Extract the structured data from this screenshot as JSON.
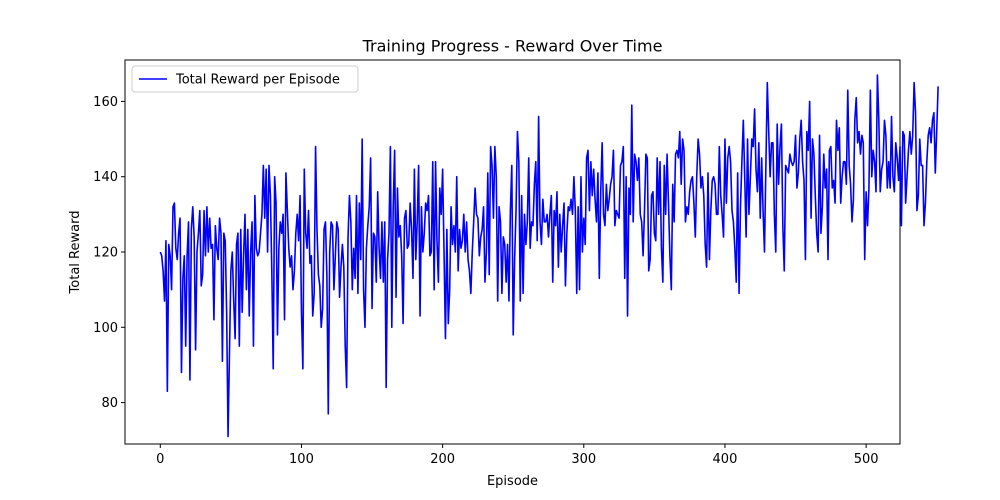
{
  "chart_data": {
    "type": "line",
    "title": "Training Progress - Reward Over Time",
    "xlabel": "Episode",
    "ylabel": "Total Reward",
    "xlim": [
      -25,
      524
    ],
    "ylim": [
      69,
      171
    ],
    "xticks": [
      0,
      100,
      200,
      300,
      400,
      500
    ],
    "yticks": [
      80,
      100,
      120,
      140,
      160
    ],
    "grid": false,
    "legend_position": "top-left",
    "series": [
      {
        "name": "Total Reward per Episode",
        "color": "#0000ff",
        "x_start": 0,
        "x_step": 1,
        "values": [
          120,
          119,
          115,
          107,
          123,
          83,
          122,
          119,
          110,
          132,
          133,
          121,
          118,
          125,
          129,
          88,
          113,
          119,
          95,
          119,
          128,
          86,
          126,
          132,
          124,
          94,
          120,
          125,
          131,
          111,
          114,
          131,
          119,
          132,
          120,
          129,
          121,
          122,
          102,
          127,
          121,
          118,
          129,
          125,
          91,
          125,
          123,
          104,
          71,
          93,
          115,
          120,
          107,
          97,
          122,
          125,
          95,
          126,
          104,
          119,
          130,
          110,
          126,
          103,
          120,
          128,
          95,
          135,
          121,
          119,
          120,
          125,
          130,
          143,
          129,
          142,
          120,
          143,
          135,
          115,
          89,
          140,
          133,
          98,
          121,
          128,
          125,
          130,
          102,
          141,
          131,
          121,
          116,
          119,
          110,
          115,
          125,
          130,
          123,
          135,
          104,
          89,
          142,
          125,
          121,
          131,
          117,
          119,
          103,
          109,
          148,
          126,
          114,
          111,
          100,
          105,
          126,
          128,
          114,
          77,
          120,
          128,
          127,
          110,
          119,
          128,
          126,
          108,
          116,
          122,
          116,
          95,
          84,
          124,
          135,
          128,
          110,
          121,
          113,
          135,
          109,
          133,
          118,
          150,
          110,
          100,
          121,
          127,
          132,
          145,
          105,
          125,
          124,
          112,
          136,
          121,
          113,
          128,
          112,
          128,
          84,
          118,
          125,
          148,
          100,
          132,
          147,
          108,
          137,
          124,
          127,
          119,
          101,
          129,
          131,
          121,
          122,
          133,
          126,
          113,
          142,
          118,
          128,
          143,
          103,
          132,
          120,
          125,
          133,
          131,
          135,
          119,
          120,
          144,
          110,
          144,
          123,
          112,
          137,
          130,
          142,
          120,
          97,
          126,
          101,
          110,
          132,
          122,
          127,
          120,
          140,
          115,
          126,
          121,
          123,
          130,
          120,
          128,
          118,
          115,
          109,
          120,
          128,
          137,
          130,
          129,
          119,
          124,
          126,
          132,
          112,
          120,
          141,
          114,
          148,
          143,
          129,
          148,
          140,
          107,
          132,
          128,
          109,
          124,
          122,
          112,
          122,
          107,
          131,
          143,
          98,
          118,
          131,
          152,
          144,
          107,
          135,
          109,
          130,
          122,
          128,
          145,
          121,
          128,
          127,
          138,
          144,
          123,
          156,
          128,
          122,
          134,
          128,
          128,
          130,
          124,
          130,
          135,
          112,
          131,
          127,
          136,
          116,
          130,
          120,
          127,
          133,
          111,
          125,
          132,
          131,
          134,
          130,
          140,
          131,
          109,
          132,
          110,
          140,
          120,
          129,
          122,
          145,
          147,
          131,
          144,
          135,
          142,
          134,
          128,
          141,
          113,
          136,
          149,
          130,
          127,
          138,
          131,
          134,
          138,
          140,
          147,
          127,
          131,
          130,
          129,
          143,
          144,
          148,
          113,
          140,
          103,
          137,
          130,
          159,
          128,
          146,
          144,
          139,
          145,
          130,
          128,
          119,
          131,
          146,
          145,
          115,
          118,
          135,
          136,
          125,
          123,
          145,
          130,
          144,
          121,
          112,
          143,
          130,
          146,
          133,
          119,
          110,
          138,
          128,
          146,
          147,
          145,
          152,
          138,
          150,
          147,
          128,
          132,
          130,
          136,
          139,
          140,
          133,
          124,
          140,
          150,
          146,
          137,
          140,
          135,
          122,
          116,
          141,
          118,
          131,
          139,
          140,
          138,
          130,
          130,
          148,
          135,
          130,
          124,
          150,
          133,
          145,
          148,
          144,
          131,
          128,
          121,
          112,
          141,
          109,
          132,
          144,
          155,
          140,
          124,
          150,
          130,
          140,
          150,
          148,
          158,
          142,
          136,
          149,
          129,
          145,
          131,
          120,
          143,
          165,
          152,
          140,
          149,
          149,
          130,
          120,
          154,
          138,
          148,
          154,
          127,
          115,
          143,
          142,
          141,
          146,
          144,
          143,
          144,
          151,
          137,
          141,
          150,
          155,
          144,
          139,
          118,
          152,
          147,
          160,
          129,
          150,
          146,
          135,
          125,
          120,
          151,
          125,
          132,
          146,
          137,
          142,
          118,
          147,
          148,
          137,
          139,
          133,
          155,
          147,
          153,
          133,
          140,
          144,
          144,
          138,
          163,
          143,
          138,
          128,
          134,
          155,
          161,
          149,
          152,
          146,
          151,
          149,
          118,
          136,
          127,
          137,
          163,
          140,
          147,
          144,
          136,
          167,
          155,
          136,
          142,
          144,
          155,
          151,
          137,
          144,
          137,
          156,
          140,
          136,
          149,
          145,
          139,
          148,
          127,
          152,
          151,
          133,
          140,
          147,
          152,
          146,
          151,
          165,
          157,
          131,
          135,
          150,
          143,
          143,
          127,
          133,
          144,
          151,
          153,
          149,
          155,
          157,
          141,
          152,
          164
        ]
      }
    ]
  }
}
